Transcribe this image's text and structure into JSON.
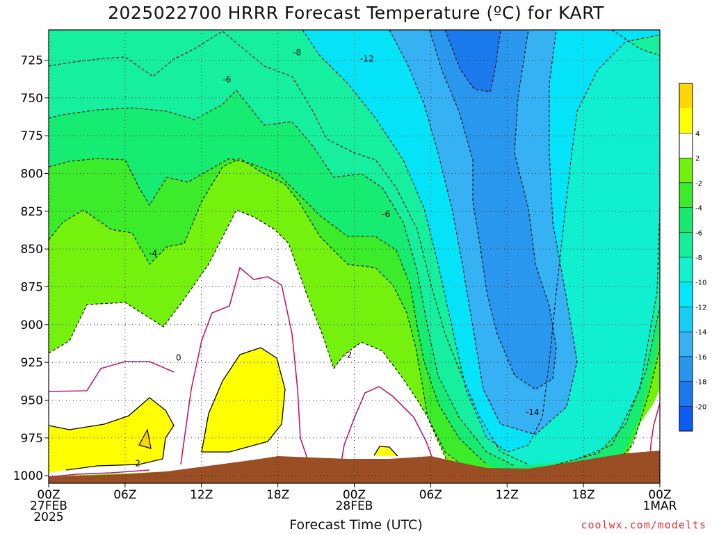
{
  "chart_data": {
    "type": "heatmap",
    "title": "2025022700 HRRR Forecast Temperature (ºC) for KART",
    "xlabel": "Forecast Time (UTC)",
    "ylabel": "",
    "credit": "coolwx.com/modelts",
    "x_ticks": [
      {
        "hour": 0,
        "lines": [
          "00Z",
          "27FEB",
          "2025"
        ]
      },
      {
        "hour": 6,
        "lines": [
          "06Z"
        ]
      },
      {
        "hour": 12,
        "lines": [
          "12Z"
        ]
      },
      {
        "hour": 18,
        "lines": [
          "18Z"
        ]
      },
      {
        "hour": 24,
        "lines": [
          "00Z",
          "28FEB"
        ]
      },
      {
        "hour": 30,
        "lines": [
          "06Z"
        ]
      },
      {
        "hour": 36,
        "lines": [
          "12Z"
        ]
      },
      {
        "hour": 42,
        "lines": [
          "18Z"
        ]
      },
      {
        "hour": 48,
        "lines": [
          "00Z",
          "1MAR"
        ]
      }
    ],
    "xlim": [
      0,
      48
    ],
    "y_ticks": [
      725,
      750,
      775,
      800,
      825,
      850,
      875,
      900,
      925,
      950,
      975,
      1000
    ],
    "ylim": [
      1005,
      705
    ],
    "grid": true,
    "colorbar": {
      "levels": [
        -22,
        -20,
        -18,
        -16,
        -14,
        -12,
        -10,
        -8,
        -6,
        -4,
        -2,
        2,
        4,
        6
      ],
      "tick_labels": [
        "-20",
        "-18",
        "-16",
        "-14",
        "-12",
        "-10",
        "-8",
        "-6",
        "-4",
        "-2",
        "2",
        "4"
      ],
      "colors": [
        "#0a5cf5",
        "#1b79ee",
        "#2996ee",
        "#38b0f2",
        "#18cdf6",
        "#05e6f9",
        "#12f2cf",
        "#15ee9a",
        "#17ea6f",
        "#3cec2b",
        "#72f10c",
        "#ffffff",
        "#ffff00",
        "#ffd700"
      ]
    },
    "contour_labels": [
      {
        "text": "-8",
        "hour": 19.5,
        "pres": 720
      },
      {
        "text": "-12",
        "hour": 25.0,
        "pres": 724
      },
      {
        "text": "-6",
        "hour": 14.0,
        "pres": 738
      },
      {
        "text": "-6",
        "hour": 26.5,
        "pres": 827
      },
      {
        "text": "-4",
        "hour": 8.2,
        "pres": 853
      },
      {
        "text": "0",
        "hour": 10.2,
        "pres": 922
      },
      {
        "text": "-2",
        "hour": 23.5,
        "pres": 920
      },
      {
        "text": "-14",
        "hour": 38.0,
        "pres": 958
      },
      {
        "text": "2",
        "hour": 7.0,
        "pres": 992
      }
    ],
    "terrain_color": "#9b4d23"
  }
}
